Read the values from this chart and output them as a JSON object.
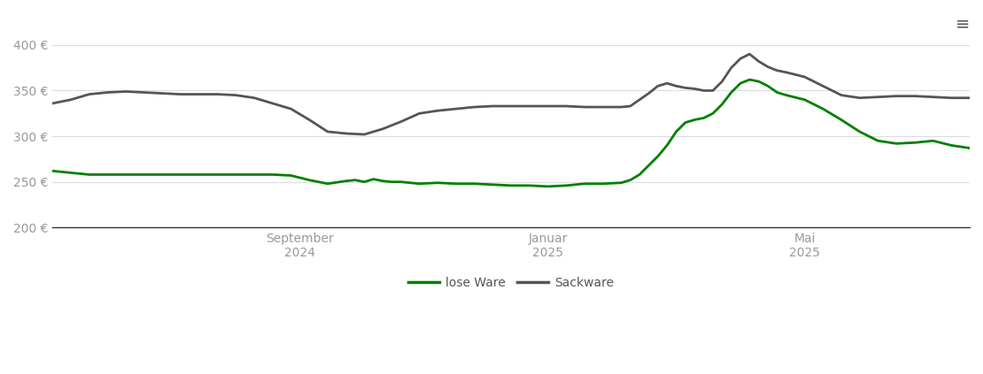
{
  "title": "",
  "xlabel": "",
  "ylabel": "",
  "ylim": [
    200,
    410
  ],
  "yticks": [
    200,
    250,
    300,
    350,
    400
  ],
  "ytick_labels": [
    "200 €",
    "250 €",
    "300 €",
    "350 €",
    "400 €"
  ],
  "background_color": "#ffffff",
  "grid_color": "#dddddd",
  "line_lose_ware_color": "#008000",
  "line_sackware_color": "#555555",
  "line_width": 2.0,
  "legend_labels": [
    "lose Ware",
    "Sackware"
  ],
  "x_tick_positions": [
    0.27,
    0.54,
    0.82
  ],
  "x_tick_labels": [
    "September\n2024",
    "Januar\n2025",
    "Mai\n2025"
  ],
  "lose_ware": {
    "x": [
      0,
      0.02,
      0.04,
      0.06,
      0.08,
      0.1,
      0.12,
      0.14,
      0.16,
      0.18,
      0.2,
      0.22,
      0.24,
      0.26,
      0.28,
      0.3,
      0.32,
      0.33,
      0.34,
      0.35,
      0.36,
      0.37,
      0.38,
      0.39,
      0.4,
      0.42,
      0.44,
      0.46,
      0.48,
      0.5,
      0.52,
      0.54,
      0.56,
      0.58,
      0.6,
      0.62,
      0.63,
      0.64,
      0.65,
      0.66,
      0.67,
      0.68,
      0.69,
      0.7,
      0.71,
      0.72,
      0.73,
      0.74,
      0.75,
      0.76,
      0.77,
      0.78,
      0.79,
      0.8,
      0.82,
      0.84,
      0.86,
      0.88,
      0.9,
      0.92,
      0.94,
      0.96,
      0.98,
      1.0
    ],
    "y": [
      262,
      260,
      258,
      258,
      258,
      258,
      258,
      258,
      258,
      258,
      258,
      258,
      258,
      257,
      252,
      248,
      251,
      252,
      250,
      253,
      251,
      250,
      250,
      249,
      248,
      249,
      248,
      248,
      247,
      246,
      246,
      245,
      246,
      248,
      248,
      249,
      252,
      258,
      268,
      278,
      290,
      305,
      315,
      318,
      320,
      325,
      335,
      348,
      358,
      362,
      360,
      355,
      348,
      345,
      340,
      330,
      318,
      305,
      295,
      292,
      293,
      295,
      290,
      287
    ]
  },
  "sackware": {
    "x": [
      0,
      0.02,
      0.04,
      0.06,
      0.08,
      0.1,
      0.12,
      0.14,
      0.16,
      0.18,
      0.2,
      0.22,
      0.24,
      0.26,
      0.28,
      0.3,
      0.32,
      0.34,
      0.36,
      0.38,
      0.4,
      0.42,
      0.44,
      0.46,
      0.48,
      0.5,
      0.52,
      0.54,
      0.56,
      0.58,
      0.6,
      0.62,
      0.63,
      0.64,
      0.65,
      0.66,
      0.67,
      0.68,
      0.69,
      0.7,
      0.71,
      0.72,
      0.73,
      0.74,
      0.75,
      0.76,
      0.77,
      0.78,
      0.79,
      0.8,
      0.82,
      0.84,
      0.86,
      0.88,
      0.9,
      0.92,
      0.94,
      0.96,
      0.98,
      1.0
    ],
    "y": [
      336,
      340,
      346,
      348,
      349,
      348,
      347,
      346,
      346,
      346,
      345,
      342,
      336,
      330,
      318,
      305,
      303,
      302,
      308,
      316,
      325,
      328,
      330,
      332,
      333,
      333,
      333,
      333,
      333,
      332,
      332,
      332,
      333,
      340,
      347,
      355,
      358,
      355,
      353,
      352,
      350,
      350,
      360,
      375,
      385,
      390,
      382,
      376,
      372,
      370,
      365,
      355,
      345,
      342,
      343,
      344,
      344,
      343,
      342,
      342
    ]
  }
}
